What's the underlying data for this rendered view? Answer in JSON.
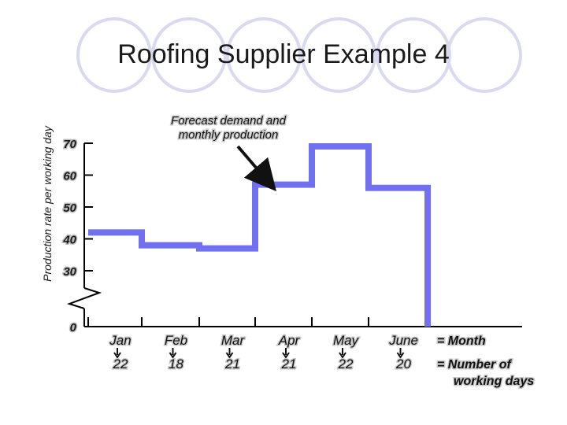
{
  "slide": {
    "title": "Roofing Supplier Example 4",
    "circle_color": "#d9d9ef"
  },
  "chart_data": {
    "type": "line",
    "subtype": "step",
    "ylabel": "Production rate per working day",
    "yticks": [
      70,
      60,
      50,
      40,
      30,
      0
    ],
    "y_axis_break": true,
    "categories": [
      "Jan",
      "Feb",
      "Mar",
      "Apr",
      "May",
      "June"
    ],
    "working_days": [
      22,
      18,
      21,
      21,
      22,
      20
    ],
    "series": [
      {
        "values": [
          42,
          38,
          37,
          57,
          69,
          56
        ],
        "color": "#7070f0"
      }
    ],
    "legend": {
      "month": "= Month",
      "days_line1": "= Number of",
      "days_line2": "working days"
    },
    "annotation": {
      "line1": "Forecast demand and",
      "line2": "monthly production"
    }
  }
}
